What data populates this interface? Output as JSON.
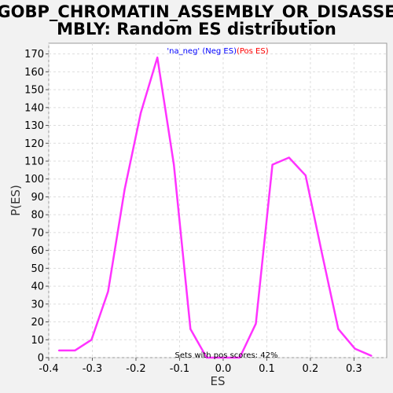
{
  "chart_data": {
    "type": "line",
    "title_line1": "GOBP_CHROMATIN_ASSEMBLY_OR_DISASSE",
    "title_line2": "MBLY: Random ES distribution",
    "xlabel": "ES",
    "ylabel": "P(ES)",
    "xlim": [
      -0.4,
      0.375
    ],
    "ylim": [
      0,
      176
    ],
    "xticks": [
      -0.4,
      -0.3,
      -0.2,
      -0.1,
      0.0,
      0.1,
      0.2,
      0.3
    ],
    "xtick_labels": [
      "-0.4",
      "-0.3",
      "-0.2",
      "-0.1",
      "0.0",
      "0.1",
      "0.2",
      "0.3"
    ],
    "yticks": [
      0,
      10,
      20,
      30,
      40,
      50,
      60,
      70,
      80,
      90,
      100,
      110,
      120,
      130,
      140,
      150,
      160,
      170
    ],
    "ytick_labels": [
      "0",
      "10",
      "20",
      "30",
      "40",
      "50",
      "60",
      "70",
      "80",
      "90",
      "100",
      "110",
      "120",
      "130",
      "140",
      "150",
      "160",
      "170"
    ],
    "grid": true,
    "legend": {
      "position": "top",
      "items": [
        {
          "label": "'na_neg' (Neg ES)",
          "color": "#0000ff"
        },
        {
          "label": "(Pos ES)",
          "color": "#ff0000"
        }
      ]
    },
    "annotation": "Sets with pos scores: 42%",
    "series": [
      {
        "color": "#ff33ff",
        "x": [
          -0.377,
          -0.34,
          -0.302,
          -0.264,
          -0.226,
          -0.189,
          -0.151,
          -0.113,
          -0.075,
          -0.038,
          0.0,
          0.038,
          0.075,
          0.113,
          0.151,
          0.189,
          0.226,
          0.264,
          0.302,
          0.34
        ],
        "y": [
          4,
          4,
          10,
          37,
          94,
          137,
          168,
          108,
          16,
          0,
          0,
          0,
          19,
          108,
          112,
          102,
          59,
          16,
          5,
          1
        ]
      }
    ]
  }
}
